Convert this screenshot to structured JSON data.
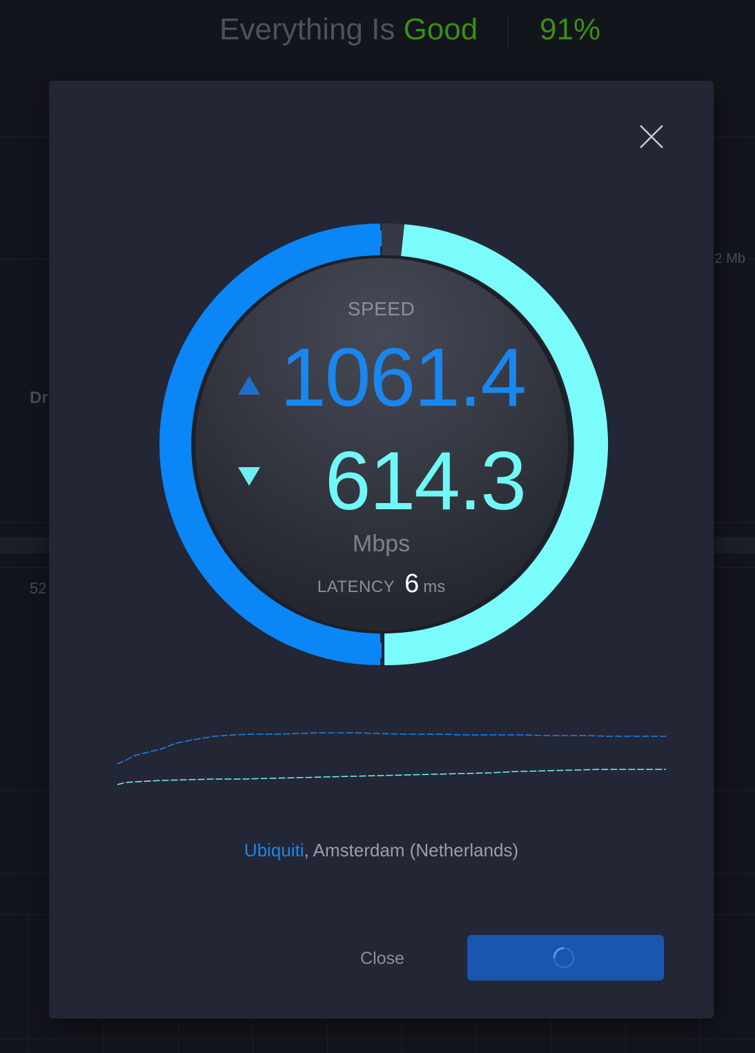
{
  "header": {
    "title_prefix": "Everything Is ",
    "title_status": "Good",
    "score": "91%"
  },
  "background": {
    "right_fragment": ".2 Mb",
    "left_fragment_1": "Dr",
    "left_fragment_2": "52"
  },
  "modal": {
    "close_icon": "close-x-icon",
    "speed_label": "SPEED",
    "upload_value": "1061.4",
    "download_value": "614.3",
    "unit": "Mbps",
    "latency_label": "LATENCY",
    "latency_value": "6",
    "latency_unit": "ms",
    "server_provider": "Ubiquiti",
    "server_location": ", Amsterdam (Netherlands)",
    "close_label": "Close",
    "primary_button_icon": "loading-spinner-icon"
  },
  "gauge": {
    "upload_color": "#0a86f6",
    "download_color": "#7afcfd"
  },
  "colors": {
    "good": "#3a8f12",
    "upload": "#1a86ee",
    "download": "#72f7f7",
    "primary_button": "#1856b0"
  }
}
